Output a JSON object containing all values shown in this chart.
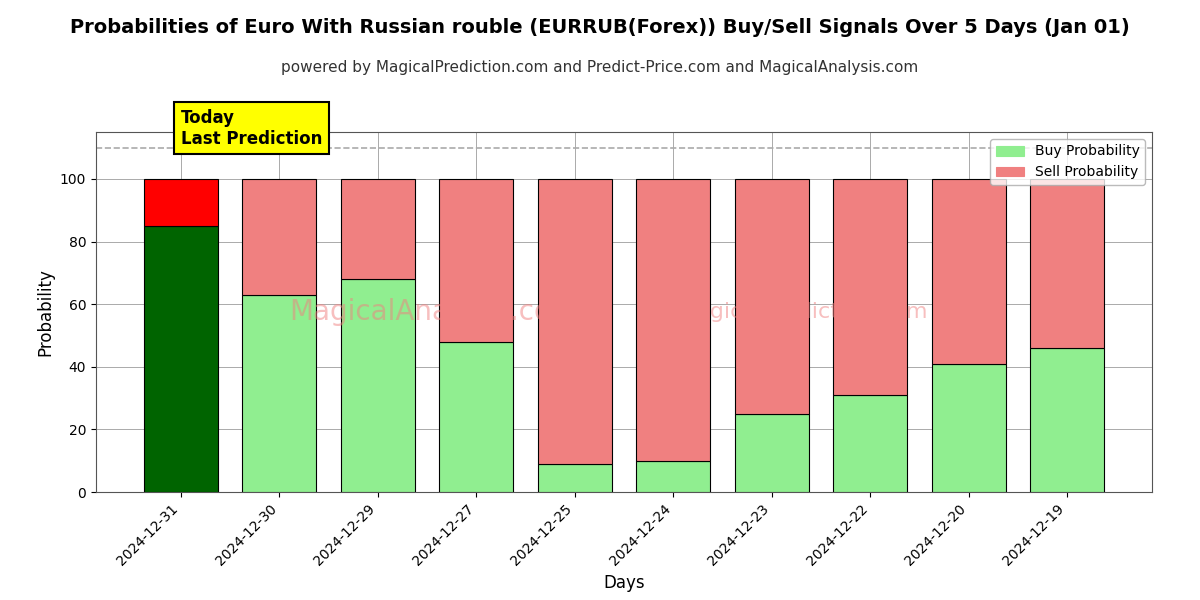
{
  "title": "Probabilities of Euro With Russian rouble (EURRUB(Forex)) Buy/Sell Signals Over 5 Days (Jan 01)",
  "subtitle": "powered by MagicalPrediction.com and Predict-Price.com and MagicalAnalysis.com",
  "xlabel": "Days",
  "ylabel": "Probability",
  "categories": [
    "2024-12-31",
    "2024-12-30",
    "2024-12-29",
    "2024-12-27",
    "2024-12-25",
    "2024-12-24",
    "2024-12-23",
    "2024-12-22",
    "2024-12-20",
    "2024-12-19"
  ],
  "buy_values": [
    85,
    63,
    68,
    48,
    9,
    10,
    25,
    31,
    41,
    46
  ],
  "sell_values": [
    15,
    37,
    32,
    52,
    91,
    90,
    75,
    69,
    59,
    54
  ],
  "buy_color_dark": "#006400",
  "buy_color_light": "#90EE90",
  "sell_color_dark": "#FF0000",
  "sell_color_light": "#F08080",
  "ylim": [
    0,
    115
  ],
  "yticks": [
    0,
    20,
    40,
    60,
    80,
    100
  ],
  "dashed_line_y": 110,
  "annotation_text": "Today\nLast Prediction",
  "legend_buy_label": "Buy Probability",
  "legend_sell_label": "Sell Probability",
  "grid_color": "#aaaaaa",
  "title_fontsize": 14,
  "subtitle_fontsize": 11,
  "axis_label_fontsize": 12,
  "bar_width": 0.75
}
